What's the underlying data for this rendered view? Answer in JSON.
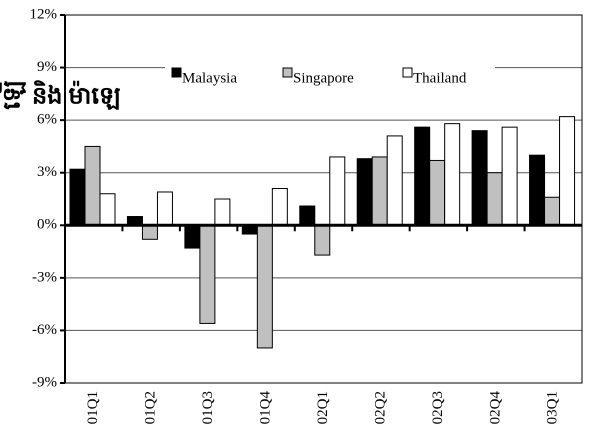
{
  "chart_data": {
    "type": "bar",
    "y_label": "ឡើ",
    "annotation": "និង ម៉ាឡេ",
    "categories": [
      "01Q1",
      "01Q2",
      "01Q3",
      "01Q4",
      "02Q1",
      "02Q2",
      "02Q3",
      "02Q4",
      "03Q1"
    ],
    "series": [
      {
        "name": "Malaysia",
        "color": "#000000",
        "values": [
          3.2,
          0.5,
          -1.3,
          -0.5,
          1.1,
          3.8,
          5.6,
          5.4,
          4.0
        ]
      },
      {
        "name": "Singapore",
        "color": "#c0c0c0",
        "values": [
          4.5,
          -0.8,
          -5.6,
          -7.0,
          -1.7,
          3.9,
          3.7,
          3.0,
          1.6
        ]
      },
      {
        "name": "Thailand",
        "color": "#ffffff",
        "values": [
          1.8,
          1.9,
          1.5,
          2.1,
          3.9,
          5.1,
          5.8,
          5.6,
          6.2
        ]
      }
    ],
    "ylim": [
      -9,
      12
    ],
    "yticks": [
      {
        "value": -9,
        "label": "-9%"
      },
      {
        "value": -6,
        "label": "-6%"
      },
      {
        "value": -3,
        "label": "-3%"
      },
      {
        "value": 0,
        "label": "0%"
      },
      {
        "value": 3,
        "label": "3%"
      },
      {
        "value": 6,
        "label": "6%"
      },
      {
        "value": 9,
        "label": "9%"
      },
      {
        "value": 12,
        "label": "12%"
      }
    ],
    "grid": true,
    "legend": "top"
  }
}
